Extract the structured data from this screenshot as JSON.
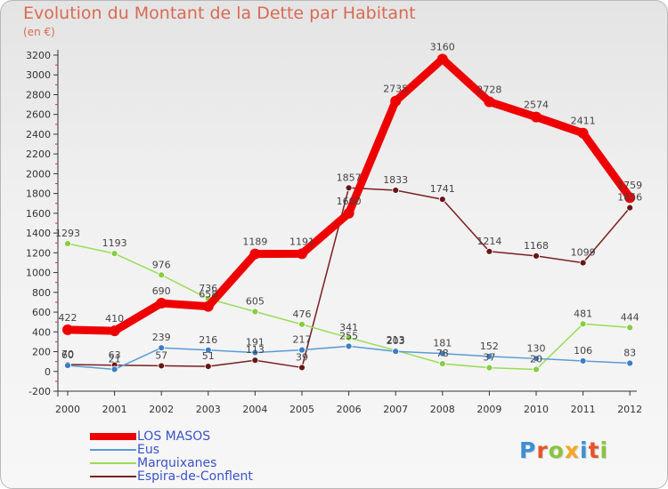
{
  "header": {
    "title": "Evolution du Montant de la Dette par Habitant",
    "unit": "(en €)"
  },
  "chart_data": {
    "type": "line",
    "title": "Evolution du Montant de la Dette par Habitant",
    "subtitle": "(en €)",
    "x": [
      2000,
      2001,
      2002,
      2003,
      2004,
      2005,
      2006,
      2007,
      2008,
      2009,
      2010,
      2011,
      2012
    ],
    "ylim": [
      -200,
      3200
    ],
    "y_ticks": [
      -200,
      0,
      200,
      400,
      600,
      800,
      1000,
      1200,
      1400,
      1600,
      1800,
      2000,
      2200,
      2400,
      2600,
      2800,
      3000,
      3200
    ],
    "grid": false,
    "legend_position": "bottom-left",
    "series": [
      {
        "name": "LOS MASOS",
        "color": "#ee0000",
        "values": [
          422,
          410,
          690,
          658,
          1189,
          1191,
          1600,
          2735,
          3160,
          2728,
          2574,
          2411,
          1759
        ]
      },
      {
        "name": "Eus",
        "color": "#5b9bd5",
        "values": [
          60,
          21,
          239,
          216,
          191,
          217,
          255,
          203,
          181,
          152,
          130,
          106,
          83
        ]
      },
      {
        "name": "Marquixanes",
        "color": "#99dd55",
        "values": [
          1293,
          1193,
          976,
          736,
          605,
          476,
          341,
          213,
          78,
          37,
          20,
          481,
          444
        ]
      },
      {
        "name": "Espira-de-Conflent",
        "color": "#7a1f1f",
        "values": [
          70,
          63,
          57,
          51,
          113,
          39,
          1857,
          1833,
          1741,
          1214,
          1168,
          1099,
          1656
        ]
      }
    ]
  },
  "legend": {
    "items": [
      {
        "label": "LOS MASOS",
        "color": "#ee0000"
      },
      {
        "label": "Eus",
        "color": "#5b9bd5"
      },
      {
        "label": "Marquixanes",
        "color": "#99dd55"
      },
      {
        "label": "Espira-de-Conflent",
        "color": "#7a1f1f"
      }
    ]
  },
  "logo": {
    "text": "Proxiti",
    "letter_colors": [
      "#3d8fd6",
      "#e8532a",
      "#8ac43f",
      "#f5a623",
      "#3d8fd6",
      "#e8532a",
      "#8ac43f"
    ]
  }
}
